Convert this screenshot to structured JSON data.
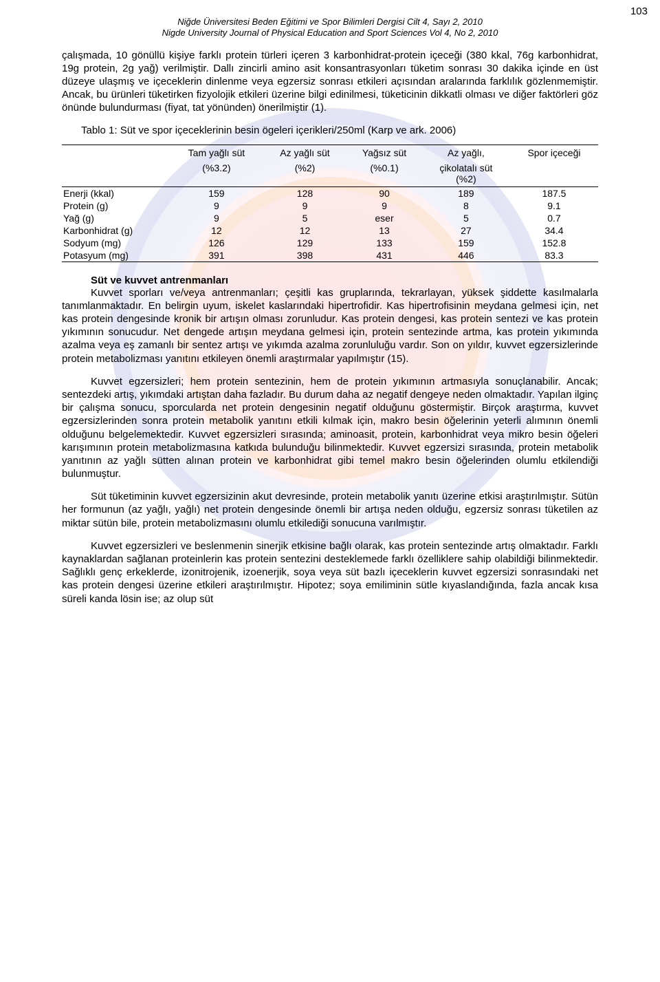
{
  "page_number": "103",
  "header": {
    "line1": "Niğde Üniversitesi Beden Eğitimi ve Spor Bilimleri Dergisi Cilt 4, Sayı 2, 2010",
    "line2": "Nigde University Journal of Physical Education and Sport Sciences Vol 4, No 2, 2010"
  },
  "paragraph1": "çalışmada, 10 gönüllü kişiye farklı protein türleri içeren 3 karbonhidrat-protein içeceği (380 kkal, 76g karbonhidrat, 19g protein, 2g yağ) verilmiştir. Dallı zincirli amino asit konsantrasyonları tüketim sonrası 30 dakika içinde en üst düzeye ulaşmış ve içeceklerin dinlenme veya egzersiz sonrası etkileri açısından aralarında farklılık gözlenmemiştir. Ancak, bu ürünleri tüketirken fizyolojik etkileri üzerine bilgi edinilmesi, tüketicinin dikkatli olması ve diğer faktörleri göz önünde bulundurması (fiyat, tat yönünden) önerilmiştir (1).",
  "table_title": "Tablo 1: Süt ve spor içeceklerinin besin ögeleri içerikleri/250ml (Karp ve ark. 2006)",
  "table": {
    "columns": [
      {
        "label_top": "",
        "label_bottom": ""
      },
      {
        "label_top": "Tam yağlı süt",
        "label_bottom": "(%3.2)"
      },
      {
        "label_top": "Az yağlı süt",
        "label_bottom": "(%2)"
      },
      {
        "label_top": "Yağsız süt",
        "label_bottom": "(%0.1)"
      },
      {
        "label_top": "Az yağlı,",
        "label_bottom": "çikolatalı süt\n(%2)"
      },
      {
        "label_top": "Spor içeceği",
        "label_bottom": ""
      }
    ],
    "rowlabels": [
      "Enerji (kkal)",
      "Protein (g)",
      "Yağ (g)",
      "Karbonhidrat (g)",
      "Sodyum (mg)",
      "Potasyum (mg)"
    ],
    "rows": [
      [
        "159",
        "128",
        "90",
        "189",
        "187.5"
      ],
      [
        "9",
        "9",
        "9",
        "8",
        "9.1"
      ],
      [
        "9",
        "5",
        "eser",
        "5",
        "0.7"
      ],
      [
        "12",
        "12",
        "13",
        "27",
        "34.4"
      ],
      [
        "126",
        "129",
        "133",
        "159",
        "152.8"
      ],
      [
        "391",
        "398",
        "431",
        "446",
        "83.3"
      ]
    ],
    "border_color": "#000000",
    "fontsize": 14
  },
  "section_title": "Süt ve kuvvet antrenmanları",
  "paragraph2": "Kuvvet sporları ve/veya antrenmanları; çeşitli kas gruplarında, tekrarlayan, yüksek şiddette kasılmalarla tanımlanmaktadır. En belirgin uyum, iskelet kaslarındaki hipertrofidir. Kas hipertrofisinin meydana gelmesi için, net kas protein dengesinde kronik bir artışın olması zorunludur. Kas protein dengesi, kas protein sentezi ve kas protein yıkımının sonucudur. Net dengede artışın meydana gelmesi için, protein sentezinde artma, kas protein yıkımında azalma veya eş zamanlı bir sentez artışı ve yıkımda azalma zorunluluğu vardır. Son on yıldır, kuvvet egzersizlerinde protein metabolizması yanıtını etkileyen önemli araştırmalar yapılmıştır (15).",
  "paragraph3": "Kuvvet egzersizleri; hem protein sentezinin, hem de protein yıkımının artmasıyla sonuçlanabilir. Ancak; sentezdeki artış, yıkımdaki artıştan daha fazladır. Bu durum daha az negatif dengeye neden olmaktadır. Yapılan ilginç bir çalışma sonucu, sporcularda net protein dengesinin negatif olduğunu göstermiştir. Birçok araştırma, kuvvet egzersizlerinden sonra protein metabolik yanıtını etkili kılmak için, makro besin öğelerinin yeterli alımının önemli olduğunu belgelemektedir. Kuvvet egzersizleri sırasında; aminoasit, protein, karbonhidrat veya mikro besin öğeleri karışımının protein metabolizmasına katkıda bulunduğu bilinmektedir. Kuvvet egzersizi sırasında, protein metabolik yanıtının az yağlı sütten alınan protein ve karbonhidrat gibi temel makro besin öğelerinden olumlu etkilendiği bulunmuştur.",
  "paragraph4": "Süt tüketiminin kuvvet egzersizinin akut devresinde, protein metabolik yanıtı üzerine etkisi araştırılmıştır. Sütün her formunun (az yağlı, yağlı) net protein dengesinde önemli bir artışa neden olduğu, egzersiz sonrası tüketilen az miktar sütün bile, protein metabolizmasını olumlu etkilediği sonucuna varılmıştır.",
  "paragraph5": "Kuvvet egzersizleri ve beslenmenin sinerjik etkisine bağlı olarak, kas protein sentezinde artış olmaktadır. Farklı kaynaklardan sağlanan proteinlerin kas protein sentezini desteklemede farklı özelliklere sahip olabildiği bilinmektedir. Sağlıklı genç erkeklerde, izonitrojenik, izoenerjik, soya veya süt bazlı içeceklerin kuvvet egzersizi sonrasındaki net kas protein dengesi üzerine etkileri araştırılmıştır. Hipotez; soya emiliminin sütle kıyaslandığında, fazla ancak kısa süreli kanda lösin ise; az olup süt",
  "colors": {
    "text": "#000000",
    "background": "#ffffff",
    "watermark_red": "rgba(220,0,20,0.06)",
    "watermark_blue": "rgba(0,20,170,0.06)",
    "watermark_yellow": "rgba(255,210,0,0.07)"
  }
}
